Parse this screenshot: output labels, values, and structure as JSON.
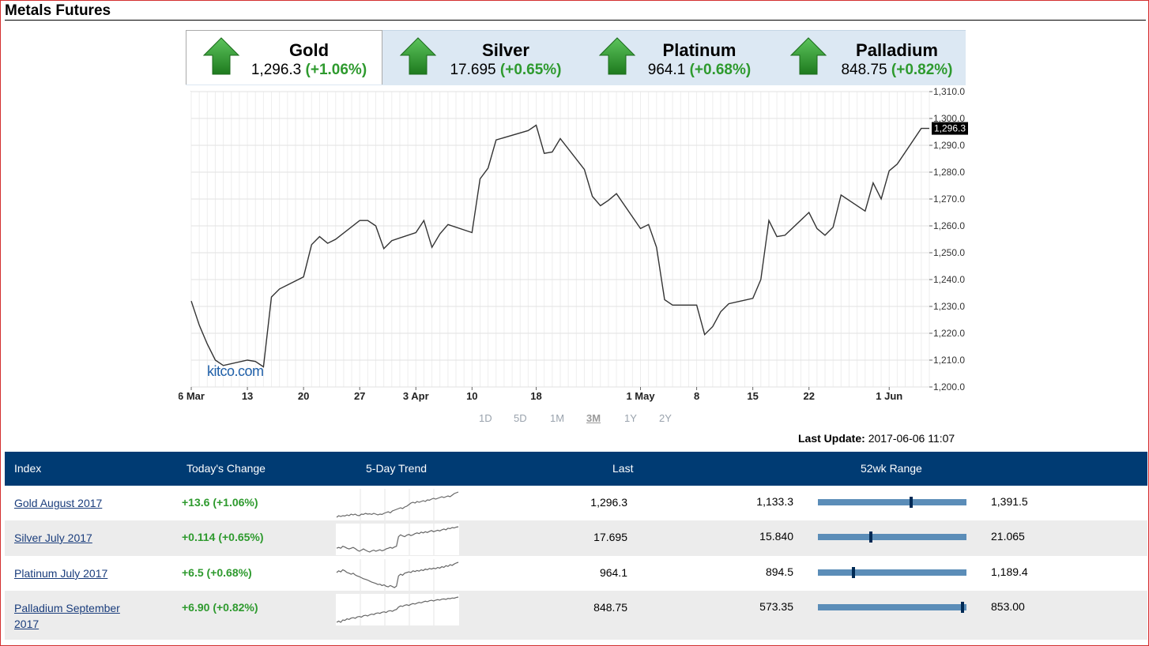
{
  "header": {
    "title": "Metals Futures"
  },
  "tabs": [
    {
      "name": "Gold",
      "price": "1,296.3",
      "change": "(+1.06%)",
      "active": true
    },
    {
      "name": "Silver",
      "price": "17.695",
      "change": "(+0.65%)",
      "active": false
    },
    {
      "name": "Platinum",
      "price": "964.1",
      "change": "(+0.68%)",
      "active": false
    },
    {
      "name": "Palladium",
      "price": "848.75",
      "change": "(+0.82%)",
      "active": false
    }
  ],
  "colors": {
    "up_arrow": "#2e9a2e",
    "header_bg": "#003b73",
    "positive": "#2e9a2e",
    "range_bar": "#5b8db8"
  },
  "chart_data": {
    "type": "line",
    "ylim": [
      1200,
      1310
    ],
    "yticks": [
      "1,310.0",
      "1,300.0",
      "1,290.0",
      "1,280.0",
      "1,270.0",
      "1,260.0",
      "1,250.0",
      "1,240.0",
      "1,230.0",
      "1,220.0",
      "1,210.0",
      "1,200.0"
    ],
    "xticks": [
      "6 Mar",
      "13",
      "20",
      "27",
      "3 Apr",
      "10",
      "18",
      "1 May",
      "8",
      "15",
      "22",
      "1 Jun"
    ],
    "current_label": "1,296.3",
    "watermark": "kitco.com",
    "x": [
      "2017-03-06",
      "2017-03-07",
      "2017-03-08",
      "2017-03-09",
      "2017-03-10",
      "2017-03-13",
      "2017-03-14",
      "2017-03-15",
      "2017-03-16",
      "2017-03-17",
      "2017-03-20",
      "2017-03-21",
      "2017-03-22",
      "2017-03-23",
      "2017-03-24",
      "2017-03-27",
      "2017-03-28",
      "2017-03-29",
      "2017-03-30",
      "2017-03-31",
      "2017-04-03",
      "2017-04-04",
      "2017-04-05",
      "2017-04-06",
      "2017-04-07",
      "2017-04-10",
      "2017-04-11",
      "2017-04-12",
      "2017-04-13",
      "2017-04-17",
      "2017-04-18",
      "2017-04-19",
      "2017-04-20",
      "2017-04-21",
      "2017-04-24",
      "2017-04-25",
      "2017-04-26",
      "2017-04-27",
      "2017-04-28",
      "2017-05-01",
      "2017-05-02",
      "2017-05-03",
      "2017-05-04",
      "2017-05-05",
      "2017-05-08",
      "2017-05-09",
      "2017-05-10",
      "2017-05-11",
      "2017-05-12",
      "2017-05-15",
      "2017-05-16",
      "2017-05-17",
      "2017-05-18",
      "2017-05-19",
      "2017-05-22",
      "2017-05-23",
      "2017-05-24",
      "2017-05-25",
      "2017-05-26",
      "2017-05-29",
      "2017-05-30",
      "2017-05-31",
      "2017-06-01",
      "2017-06-02",
      "2017-06-05",
      "2017-06-06"
    ],
    "values": [
      1232,
      1223,
      1216,
      1210,
      1208,
      1210,
      1209.5,
      1207.5,
      1233.5,
      1236.5,
      1241,
      1253,
      1256,
      1253.5,
      1255,
      1262,
      1262,
      1260,
      1251.5,
      1254.5,
      1257.5,
      1262,
      1252,
      1257,
      1260.5,
      1257.5,
      1277.5,
      1281.5,
      1292,
      1295.5,
      1297.5,
      1287,
      1287.5,
      1292.5,
      1281,
      1271,
      1267.5,
      1269.5,
      1272,
      1259,
      1260.5,
      1252,
      1232.5,
      1230.5,
      1230.5,
      1219.5,
      1222.5,
      1228,
      1231,
      1233,
      1240,
      1262,
      1256,
      1256.5,
      1265,
      1259,
      1256.5,
      1259.5,
      1271.5,
      1265.5,
      1276,
      1270,
      1280.5,
      1283,
      1296.3,
      1296.3
    ]
  },
  "range_options": [
    "1D",
    "5D",
    "1M",
    "3M",
    "1Y",
    "2Y"
  ],
  "range_selected": "3M",
  "last_update": {
    "label": "Last Update:",
    "value": "2017-06-06 11:07"
  },
  "table": {
    "headers": {
      "index": "Index",
      "change": "Today's Change",
      "trend": "5-Day Trend",
      "last": "Last",
      "range": "52wk Range"
    },
    "rows": [
      {
        "index": "Gold August 2017",
        "change": "+13.6 (+1.06%)",
        "last": "1,296.3",
        "low": "1,133.3",
        "high": "1,391.5",
        "position": 0.63,
        "trend": [
          4,
          5,
          4.5,
          5,
          4.8,
          5.5,
          5,
          6,
          5.5,
          6,
          5.2,
          5,
          6,
          5.8,
          6.5,
          6,
          6.2,
          5.8,
          6.5,
          6,
          5.5,
          6,
          5.8,
          6.5,
          7,
          7.5,
          6.8,
          8,
          8.5,
          9,
          9.5,
          10,
          9.5,
          10.5,
          11,
          12,
          13,
          13.5,
          13,
          14,
          13.5,
          14,
          14.5,
          14,
          15,
          14.8,
          15.5,
          16,
          15.5,
          16,
          16.5,
          17,
          16.5,
          17,
          17.5,
          17,
          18,
          19,
          19.5,
          20
        ]
      },
      {
        "index": "Silver July 2017",
        "change": "+0.114 (+0.65%)",
        "last": "17.695",
        "low": "15.840",
        "high": "21.065",
        "position": 0.355,
        "trend": [
          8,
          8.2,
          8,
          8.5,
          8.3,
          8,
          7.8,
          8,
          8.2,
          7.9,
          7.5,
          7.2,
          7.5,
          7.8,
          7.5,
          7.2,
          7,
          7.3,
          7.5,
          7.2,
          7.4,
          7.6,
          7.3,
          7.5,
          7.8,
          8,
          8.2,
          8,
          8.3,
          8.5,
          11,
          11.5,
          11.2,
          11,
          11.4,
          11.6,
          11.3,
          11.5,
          11.8,
          12,
          11.8,
          12.2,
          12,
          12.3,
          12.1,
          12.4,
          12.6,
          12.3,
          12.5,
          12.7,
          12.5,
          12.8,
          13,
          12.8,
          13.2,
          13.1,
          13.4,
          13.3,
          13.5,
          13.6
        ]
      },
      {
        "index": "Platinum July 2017",
        "change": "+6.5 (+0.68%)",
        "last": "964.1",
        "low": "894.5",
        "high": "1,189.4",
        "position": 0.235,
        "trend": [
          10,
          10.5,
          10.2,
          10.8,
          10.5,
          10,
          9.8,
          9.5,
          9.8,
          9.3,
          9,
          8.8,
          8.5,
          8.2,
          8,
          7.8,
          7.5,
          7.2,
          7,
          6.8,
          6.5,
          6.6,
          6.2,
          6.4,
          6,
          5.8,
          6.2,
          5.9,
          5.6,
          6,
          9,
          9.5,
          9.2,
          9.8,
          10,
          10.2,
          10,
          10.5,
          10.3,
          10.6,
          10.4,
          10.8,
          10.6,
          11,
          10.8,
          11.2,
          11,
          11.3,
          11.1,
          11.5,
          11.3,
          11.7,
          11.5,
          12,
          11.8,
          12.3,
          12.1,
          12.5,
          12.8,
          13
        ]
      },
      {
        "index": "Palladium September 2017",
        "change": "+6.90 (+0.82%)",
        "last": "848.75",
        "low": "573.35",
        "high": "853.00",
        "position": 0.985,
        "trend": [
          1,
          1.5,
          1,
          2,
          1.8,
          2.5,
          2.2,
          2.8,
          3,
          2.7,
          3.3,
          3.5,
          3.2,
          3.8,
          4,
          3.7,
          4.2,
          4.5,
          4.3,
          4.8,
          5,
          4.8,
          5.3,
          5.5,
          5.2,
          5.8,
          6,
          5.7,
          6.2,
          6.5,
          7.5,
          8,
          7.8,
          8.3,
          8.5,
          8.2,
          8.7,
          9,
          8.8,
          9.2,
          9.5,
          9.3,
          9.7,
          10,
          9.8,
          10.2,
          10.4,
          10.1,
          10.5,
          10.7,
          10.5,
          10.9,
          11,
          10.8,
          11.2,
          11.1,
          11.4,
          11.3,
          11.6,
          11.8
        ]
      }
    ]
  }
}
